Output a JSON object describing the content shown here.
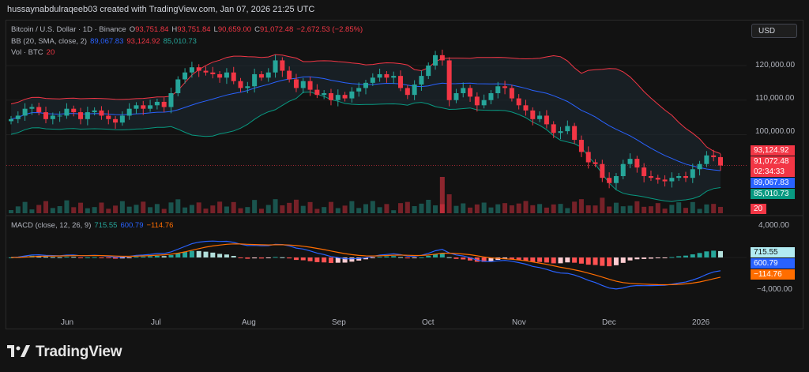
{
  "header": {
    "title": "hussaynabdulraqeeb03 created with TradingView.com, Jan 07, 2026 21:25 UTC"
  },
  "legend_main": {
    "symbol": "Bitcoin / U.S. Dollar · 1D · Binance",
    "o_label": "O",
    "o_value": "93,751.84",
    "h_label": "H",
    "h_value": "93,751.84",
    "l_label": "L",
    "l_value": "90,659.00",
    "c_label": "C",
    "c_value": "91,072.48",
    "change": "−2,672.53 (−2.85%)"
  },
  "legend_bb": {
    "label": "BB (20, SMA, close, 2)",
    "basis": "89,067.83",
    "upper": "93,124.92",
    "lower": "85,010.73"
  },
  "legend_vol": {
    "label": "Vol · BTC",
    "value": "20"
  },
  "legend_macd": {
    "label": "MACD (close, 12, 26, 9)",
    "hist": "715.55",
    "macd": "600.79",
    "signal": "−114.76"
  },
  "currency_button": "USD",
  "price_axis": [
    "120,000.00",
    "110,000.00",
    "100,000.00"
  ],
  "price_tags": {
    "bb_upper": "93,124.92",
    "last_price": "91,072.48",
    "countdown": "02:34:33",
    "bb_basis": "89,067.83",
    "bb_lower": "85,010.73",
    "volume": "20"
  },
  "macd_axis": [
    "4,000.00",
    "−4,000.00"
  ],
  "macd_tags": {
    "hist": "715.55",
    "macd": "600.79",
    "signal": "−114.76"
  },
  "time_axis": [
    "Jun",
    "Jul",
    "Aug",
    "Sep",
    "Oct",
    "Nov",
    "Dec",
    "2026"
  ],
  "footer": {
    "brand": "TradingView"
  },
  "colors": {
    "up": "#26a69a",
    "down": "#f23645",
    "bb_upper": "#f23645",
    "bb_basis": "#2962ff",
    "bb_lower": "#089981",
    "macd": "#2962ff",
    "signal": "#ff6d00",
    "background": "#131313"
  },
  "chart_data": {
    "type": "candlestick",
    "series_close_approx": [
      104500,
      105500,
      107500,
      108000,
      106500,
      104500,
      105500,
      105500,
      107500,
      106500,
      104500,
      106500,
      107000,
      105500,
      104500,
      103500,
      105500,
      107500,
      108500,
      107500,
      108500,
      109500,
      108000,
      112000,
      116000,
      118000,
      119500,
      118500,
      118000,
      117500,
      116500,
      118000,
      115500,
      113500,
      114000,
      117500,
      116500,
      118000,
      121500,
      118500,
      116000,
      113500,
      115500,
      113000,
      111500,
      112000,
      110000,
      111500,
      110500,
      112500,
      113500,
      115000,
      116500,
      117500,
      116500,
      117000,
      113500,
      111500,
      114500,
      117000,
      120000,
      123000,
      121500,
      110000,
      112000,
      113500,
      111000,
      108500,
      110000,
      112000,
      114000,
      113500,
      110500,
      108500,
      107000,
      104500,
      105500,
      103000,
      100500,
      101000,
      102500,
      98500,
      95000,
      92000,
      91500,
      87500,
      86000,
      88000,
      91500,
      93000,
      90500,
      88000,
      87500,
      87000,
      86500,
      87500,
      88000,
      87500,
      90000,
      91500,
      94000,
      93500,
      91072
    ],
    "bollinger": {
      "upper_last": 93124.92,
      "basis_last": 89067.83,
      "lower_last": 85010.73
    },
    "macd": {
      "hist_last": 715.55,
      "macd_last": 600.79,
      "signal_last": -114.76
    },
    "price_range": [
      80000,
      128000
    ],
    "macd_range": [
      -5500,
      5500
    ]
  }
}
